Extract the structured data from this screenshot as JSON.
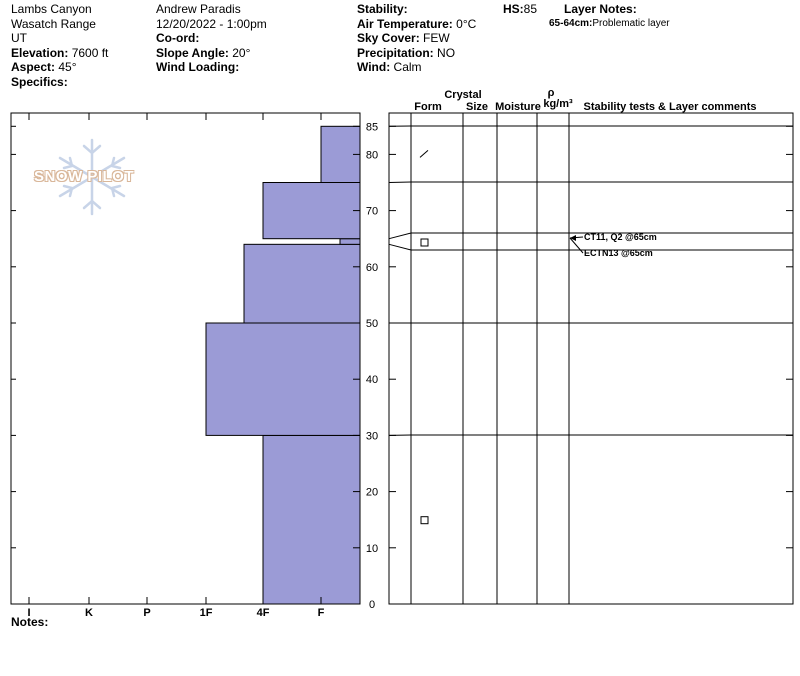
{
  "header": {
    "location": "Lambs Canyon",
    "range": "Wasatch Range",
    "state": "UT",
    "elevation_label": "Elevation:",
    "elevation_value": " 7600 ft",
    "aspect_label": "Aspect:",
    "aspect_value": " 45°",
    "specifics_label": "Specifics:",
    "observer": "Andrew Paradis",
    "datetime": "12/20/2022 - 1:00pm",
    "coord_label": "Co-ord:",
    "slope_label": "Slope Angle:",
    "slope_value": " 20°",
    "wind_loading_label": "Wind Loading:",
    "stability_label": "Stability:",
    "air_temp_label": "Air Temperature:",
    "air_temp_value": " 0°C",
    "sky_label": "Sky Cover:",
    "sky_value": " FEW",
    "precip_label": "Precipitation:",
    "precip_value": " NO",
    "wind_label": "Wind:",
    "wind_value": "  Calm",
    "hs_label": "HS:",
    "hs_value": "85",
    "layer_notes_label": "Layer Notes:",
    "layer_note_range": "65-64cm:",
    "layer_note_text": "Problematic layer"
  },
  "notes_label": "Notes:",
  "logo_text": "SNOW PILOT",
  "columns": {
    "form": "Form",
    "crystal": "Crystal",
    "size": "Size",
    "moisture": "Moisture",
    "rho": "ρ",
    "density_unit": "kg/m³",
    "stability_comments": "Stability tests & Layer comments"
  },
  "chart_data": {
    "type": "snow-profile",
    "hardness_categories": [
      "I",
      "K",
      "P",
      "1F",
      "4F",
      "F"
    ],
    "height_ticks": [
      "0",
      "10",
      "20",
      "30",
      "40",
      "50",
      "60",
      "70",
      "80",
      "85"
    ],
    "height_range": [
      0,
      85
    ],
    "colors": {
      "hardness_fill": "#9b9bd6",
      "line": "#000000"
    },
    "hardness_layers": [
      {
        "bottom": 0,
        "top": 30,
        "hardness": "4F"
      },
      {
        "bottom": 30,
        "top": 50,
        "hardness": "1F"
      },
      {
        "bottom": 50,
        "top": 64,
        "hardness": "1F+"
      },
      {
        "bottom": 64,
        "top": 65,
        "hardness": "F+"
      },
      {
        "bottom": 65,
        "top": 75,
        "hardness": "4F"
      },
      {
        "bottom": 75,
        "top": 85,
        "hardness": "F"
      }
    ],
    "layer_boundaries": [
      0,
      30,
      50,
      64,
      65,
      75,
      85
    ],
    "grain_symbols": [
      {
        "height": 80,
        "form": "slash"
      },
      {
        "height": 64.5,
        "form": "square"
      },
      {
        "height": 15,
        "form": "square"
      }
    ],
    "stability_tests": [
      {
        "height": 65,
        "text": "CT11, Q2 @65cm"
      },
      {
        "height": 65,
        "text": "ECTN13 @65cm"
      }
    ]
  }
}
